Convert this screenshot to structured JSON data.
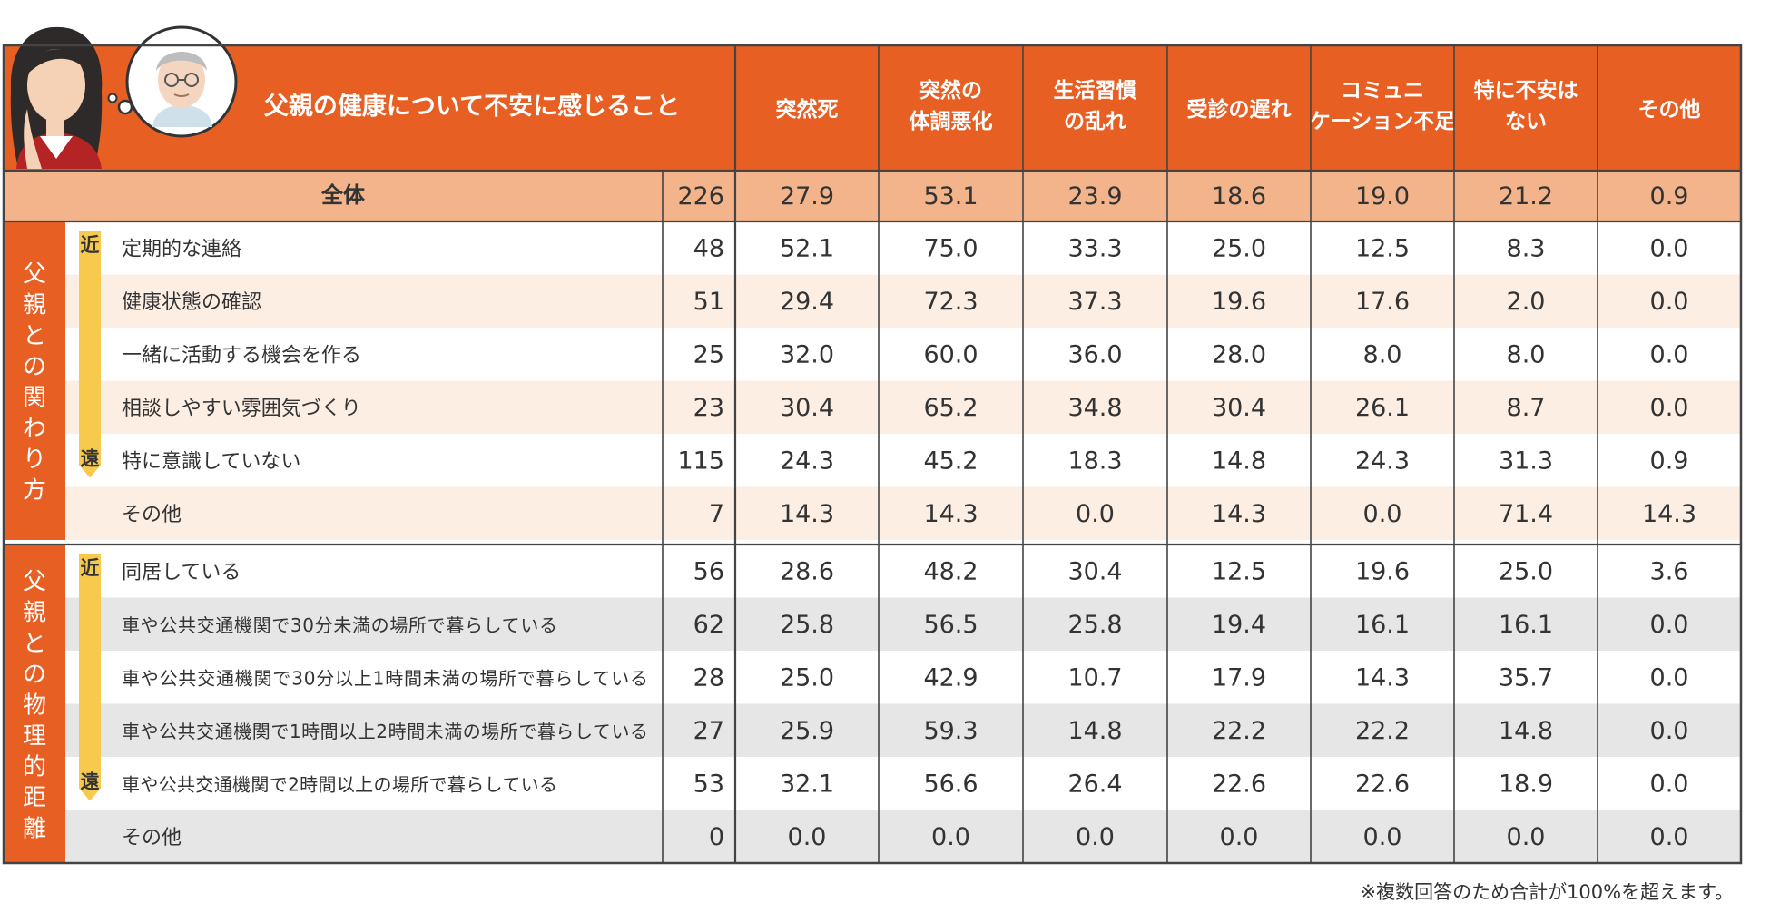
{
  "chart_data": {
    "type": "table",
    "title": "父親の健康について不安に感じること",
    "columns": [
      "突然死",
      "突然の体調悪化",
      "生活習慣の乱れ",
      "受診の遅れ",
      "コミュニケーション不足",
      "特に不安はない",
      "その他"
    ],
    "column_lines": [
      [
        "突然死"
      ],
      [
        "突然の",
        "体調悪化"
      ],
      [
        "生活習慣",
        "の乱れ"
      ],
      [
        "受診の遅れ"
      ],
      [
        "コミュニ",
        "ケーション不足"
      ],
      [
        "特に不安は",
        "ない"
      ],
      [
        "その他"
      ]
    ],
    "total": {
      "label": "全体",
      "n": 226,
      "values": [
        27.9,
        53.1,
        23.9,
        18.6,
        19.0,
        21.2,
        0.9
      ]
    },
    "groups": [
      {
        "name": "父親との関わり方",
        "near_label": "近",
        "far_label": "遠",
        "rows": [
          {
            "label": "定期的な連絡",
            "n": 48,
            "values": [
              52.1,
              75.0,
              33.3,
              25.0,
              12.5,
              8.3,
              0.0
            ]
          },
          {
            "label": "健康状態の確認",
            "n": 51,
            "values": [
              29.4,
              72.3,
              37.3,
              19.6,
              17.6,
              2.0,
              0.0
            ]
          },
          {
            "label": "一緒に活動する機会を作る",
            "n": 25,
            "values": [
              32.0,
              60.0,
              36.0,
              28.0,
              8.0,
              8.0,
              0.0
            ]
          },
          {
            "label": "相談しやすい雰囲気づくり",
            "n": 23,
            "values": [
              30.4,
              65.2,
              34.8,
              30.4,
              26.1,
              8.7,
              0.0
            ]
          },
          {
            "label": "特に意識していない",
            "n": 115,
            "values": [
              24.3,
              45.2,
              18.3,
              14.8,
              24.3,
              31.3,
              0.9
            ]
          },
          {
            "label": "その他",
            "n": 7,
            "values": [
              14.3,
              14.3,
              0.0,
              14.3,
              0.0,
              71.4,
              14.3
            ]
          }
        ]
      },
      {
        "name": "父親との物理的距離",
        "near_label": "近",
        "far_label": "遠",
        "rows": [
          {
            "label": "同居している",
            "n": 56,
            "values": [
              28.6,
              48.2,
              30.4,
              12.5,
              19.6,
              25.0,
              3.6
            ]
          },
          {
            "label": "車や公共交通機関で30分未満の場所で暮らしている",
            "n": 62,
            "values": [
              25.8,
              56.5,
              25.8,
              19.4,
              16.1,
              16.1,
              0.0
            ]
          },
          {
            "label": "車や公共交通機関で30分以上1時間未満の場所で暮らしている",
            "n": 28,
            "values": [
              25.0,
              42.9,
              10.7,
              17.9,
              14.3,
              35.7,
              0.0
            ]
          },
          {
            "label": "車や公共交通機関で1時間以上2時間未満の場所で暮らしている",
            "n": 27,
            "values": [
              25.9,
              59.3,
              14.8,
              22.2,
              22.2,
              14.8,
              0.0
            ]
          },
          {
            "label": "車や公共交通機関で2時間以上の場所で暮らしている",
            "n": 53,
            "values": [
              32.1,
              56.6,
              26.4,
              22.6,
              22.6,
              18.9,
              0.0
            ]
          },
          {
            "label": "その他",
            "n": 0,
            "values": [
              0.0,
              0.0,
              0.0,
              0.0,
              0.0,
              0.0,
              0.0
            ]
          }
        ]
      }
    ],
    "footnote": "※複数回答のため合計が100%を超えます。"
  },
  "colors": {
    "header": "#e85f24",
    "total_row": "#f3b48b",
    "peach_row": "#fdeee3",
    "gray_row": "#e6e6e6",
    "white_row": "#ffffff",
    "grid": "#444444",
    "arrow": "#f7c94c",
    "header_text": "#ffffff"
  }
}
